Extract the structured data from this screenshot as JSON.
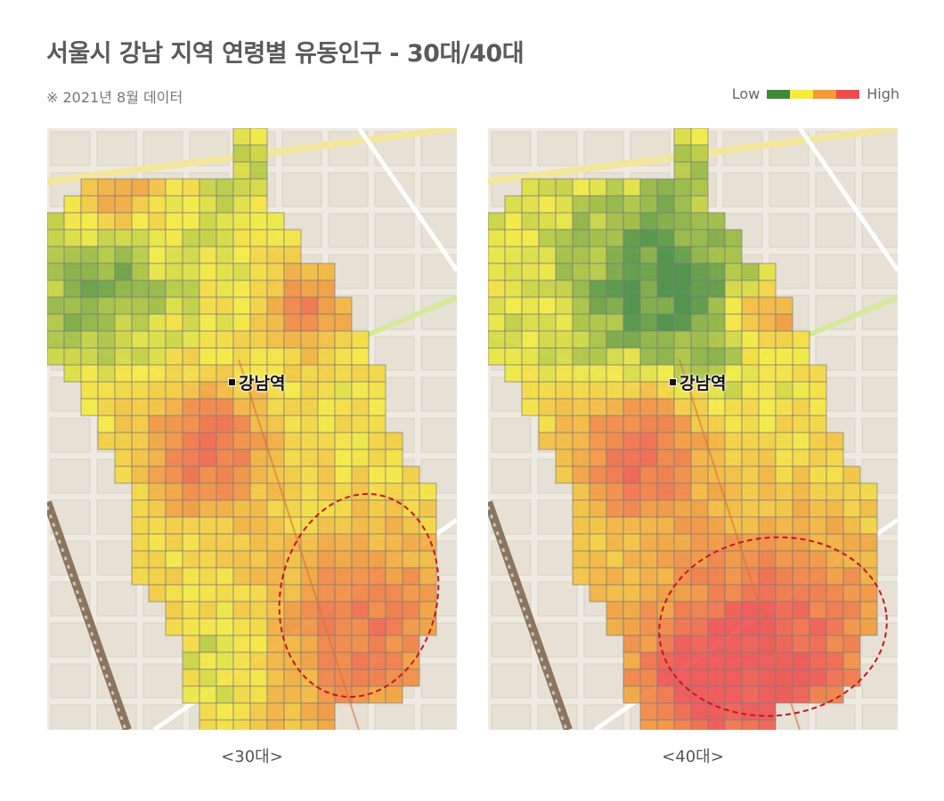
{
  "header": {
    "title": "서울시 강남 지역 연령별 유동인구 - 30대/40대",
    "note": "※ 2021년 8월 데이터"
  },
  "legend": {
    "low_label": "Low",
    "high_label": "High",
    "colors": [
      "#3f8a3a",
      "#f5ec3a",
      "#f39a36",
      "#ef4b4b"
    ]
  },
  "maps": [
    {
      "caption": "<30대>",
      "station": "강남역",
      "hotspot_level": 0.75
    },
    {
      "caption": "<40대>",
      "station": "강남역",
      "hotspot_level": 0.9
    }
  ]
}
